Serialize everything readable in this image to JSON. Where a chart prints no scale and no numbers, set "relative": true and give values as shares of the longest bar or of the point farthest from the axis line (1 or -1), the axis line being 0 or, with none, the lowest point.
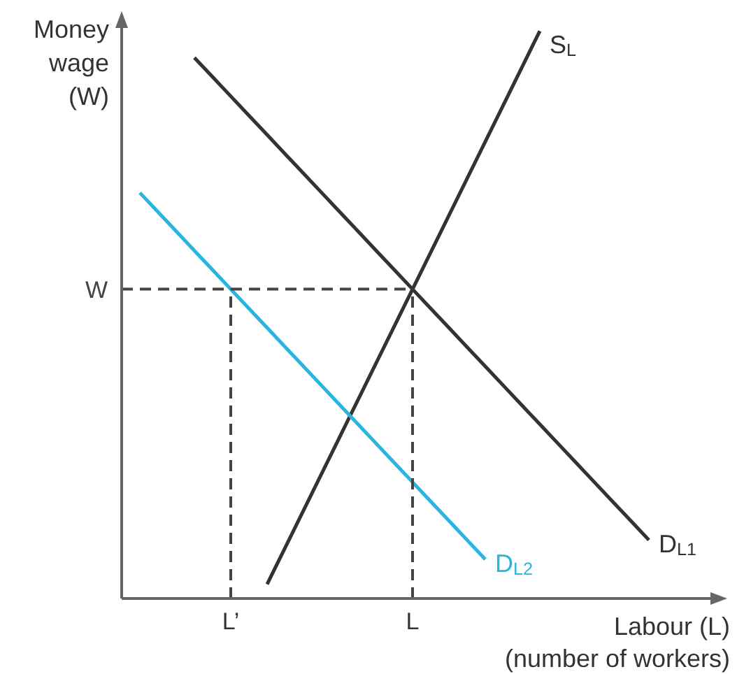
{
  "chart_data": {
    "type": "line",
    "relative": true,
    "ylabel": "Money\nwage\n(W)",
    "xlabel": "Labour (L)\n(number of workers)",
    "marker": "none",
    "categories": [
      null,
      null,
      null,
      null,
      null,
      null,
      "L’",
      null,
      null,
      null,
      null,
      null,
      null,
      null,
      null,
      null,
      "L",
      null,
      null,
      null,
      null,
      null,
      null,
      null,
      null,
      null,
      null,
      null,
      null,
      null,
      null,
      null,
      null,
      null
    ],
    "series": [
      {
        "name": "S$_{L}$",
        "color": "#333333",
        "values": [
          null,
          null,
          null,
          null,
          null,
          null,
          null,
          null,
          0.025,
          0.09,
          0.155,
          0.22,
          0.285,
          0.35,
          0.415,
          0.48,
          0.545,
          0.61,
          0.675,
          0.74,
          0.805,
          0.87,
          0.935,
          1,
          null,
          null,
          null,
          null,
          null,
          null,
          null,
          null,
          null,
          null
        ]
      },
      {
        "name": "D$_{L1}$",
        "color": "#333333",
        "values": [
          null,
          null,
          null,
          null,
          0.953,
          0.919,
          0.885,
          0.851,
          0.817,
          0.783,
          0.749,
          0.715,
          0.681,
          0.647,
          0.613,
          0.579,
          0.545,
          0.511,
          0.477,
          0.443,
          0.409,
          0.375,
          0.341,
          0.307,
          0.273,
          0.239,
          0.205,
          0.171,
          0.137,
          0.103,
          null,
          null,
          null,
          null
        ]
      },
      {
        "name": "D$_{L2}$",
        "color": "#29b5e0",
        "values": [
          null,
          0.715,
          0.681,
          0.647,
          0.613,
          0.579,
          0.545,
          0.511,
          0.477,
          0.443,
          0.409,
          0.375,
          0.341,
          0.307,
          0.273,
          0.239,
          0.205,
          0.171,
          0.137,
          0.103,
          0.069,
          null,
          null,
          null,
          null,
          null,
          null,
          null,
          null,
          null,
          null,
          null,
          null,
          null
        ]
      },
      {
        "name": "W",
        "color": "#444444",
        "line_style": "dashed",
        "values": [
          0.545,
          0.545,
          0.545,
          0.545,
          0.545,
          0.545,
          0.545,
          0.545,
          0.545,
          0.545,
          0.545,
          0.545,
          0.545,
          0.545,
          0.545,
          0.545,
          0.545,
          null,
          null,
          null,
          null,
          null,
          null,
          null,
          null,
          null,
          null,
          null,
          null,
          null,
          null,
          null,
          null,
          null
        ]
      },
      {
        "color": "#444444",
        "line_style": "dashed",
        "x": [
          "L’",
          "L’"
        ],
        "values": [
          0,
          0.545
        ]
      },
      {
        "color": "#444444",
        "line_style": "dashed",
        "x": [
          "L",
          "L"
        ],
        "values": [
          0,
          0.545
        ]
      }
    ]
  }
}
